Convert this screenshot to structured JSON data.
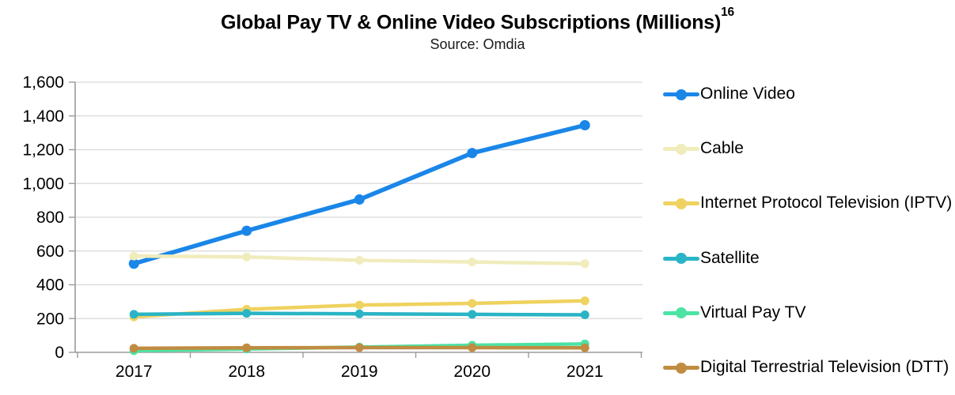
{
  "page": {
    "background": "#ffffff"
  },
  "chart_data": {
    "type": "line",
    "title": "Global Pay TV & Online Video Subscriptions (Millions)",
    "title_superscript": "16",
    "subtitle": "Source: Omdia",
    "categories": [
      "2017",
      "2018",
      "2019",
      "2020",
      "2021"
    ],
    "series": [
      {
        "name": "Online Video",
        "color": "#1a86e8",
        "values": [
          525,
          720,
          905,
          1180,
          1345
        ]
      },
      {
        "name": "Cable",
        "color": "#f0ecbc",
        "values": [
          570,
          565,
          545,
          535,
          525
        ]
      },
      {
        "name": "Internet Protocol Television (IPTV)",
        "color": "#efd25f",
        "values": [
          210,
          255,
          280,
          290,
          305
        ]
      },
      {
        "name": "Satellite",
        "color": "#2ab4c6",
        "values": [
          225,
          231,
          228,
          225,
          222
        ]
      },
      {
        "name": "Virtual Pay TV",
        "color": "#4ce3a4",
        "values": [
          10,
          20,
          31,
          42,
          50
        ]
      },
      {
        "name": "Digital Terrestrial Television (DTT)",
        "color": "#c08c42",
        "values": [
          24,
          27,
          28,
          28,
          27
        ]
      }
    ],
    "ylim": [
      0,
      1600
    ],
    "y_tick_interval": 200,
    "y_tick_labels": [
      "0",
      "200",
      "400",
      "600",
      "800",
      "1,000",
      "1,200",
      "1,400",
      "1,600"
    ],
    "grid": "horizontal",
    "legend_position": "right",
    "gridline_color": "#d9d9d9",
    "axis_color": "#9b9b9b",
    "text_color": "#000000"
  }
}
